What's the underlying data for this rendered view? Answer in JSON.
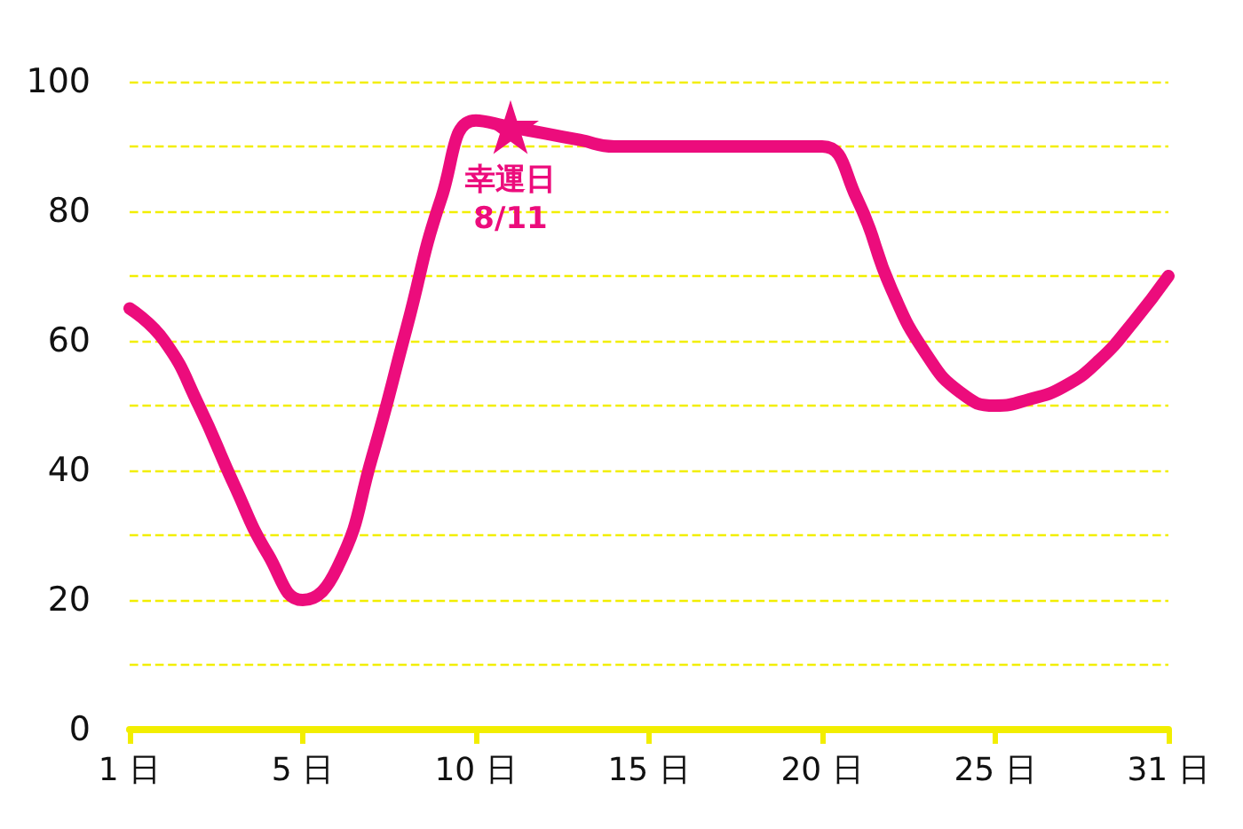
{
  "chart_data": {
    "type": "line",
    "categories": [
      "1 日",
      null,
      null,
      null,
      null,
      "5 日",
      null,
      null,
      null,
      null,
      "10 日",
      null,
      null,
      null,
      null,
      "15 日",
      null,
      null,
      null,
      null,
      "20 日",
      null,
      null,
      null,
      null,
      "25 日",
      null,
      null,
      null,
      null,
      "31 日"
    ],
    "series": [
      {
        "color": "#ec0c7c",
        "values": [
          65,
          60,
          50,
          38,
          27,
          20,
          25,
          42,
          62,
          82,
          94,
          93,
          92,
          91,
          90,
          90,
          90,
          90,
          90,
          90,
          90,
          82,
          68,
          58,
          52,
          50,
          51,
          53,
          57,
          63,
          70
        ]
      }
    ],
    "ylim": [
      0,
      100
    ],
    "yticks": [
      0,
      {
        "value": 10,
        "label": null
      },
      20,
      {
        "value": 30,
        "label": null
      },
      40,
      {
        "value": 50,
        "label": null
      },
      60,
      {
        "value": 70,
        "label": null
      },
      80,
      {
        "value": 90,
        "label": null
      },
      100
    ],
    "grid": "y",
    "line_style": "solid",
    "annotations": [
      {
        "text": "幸運日\n8/11",
        "y": 93
      }
    ]
  }
}
